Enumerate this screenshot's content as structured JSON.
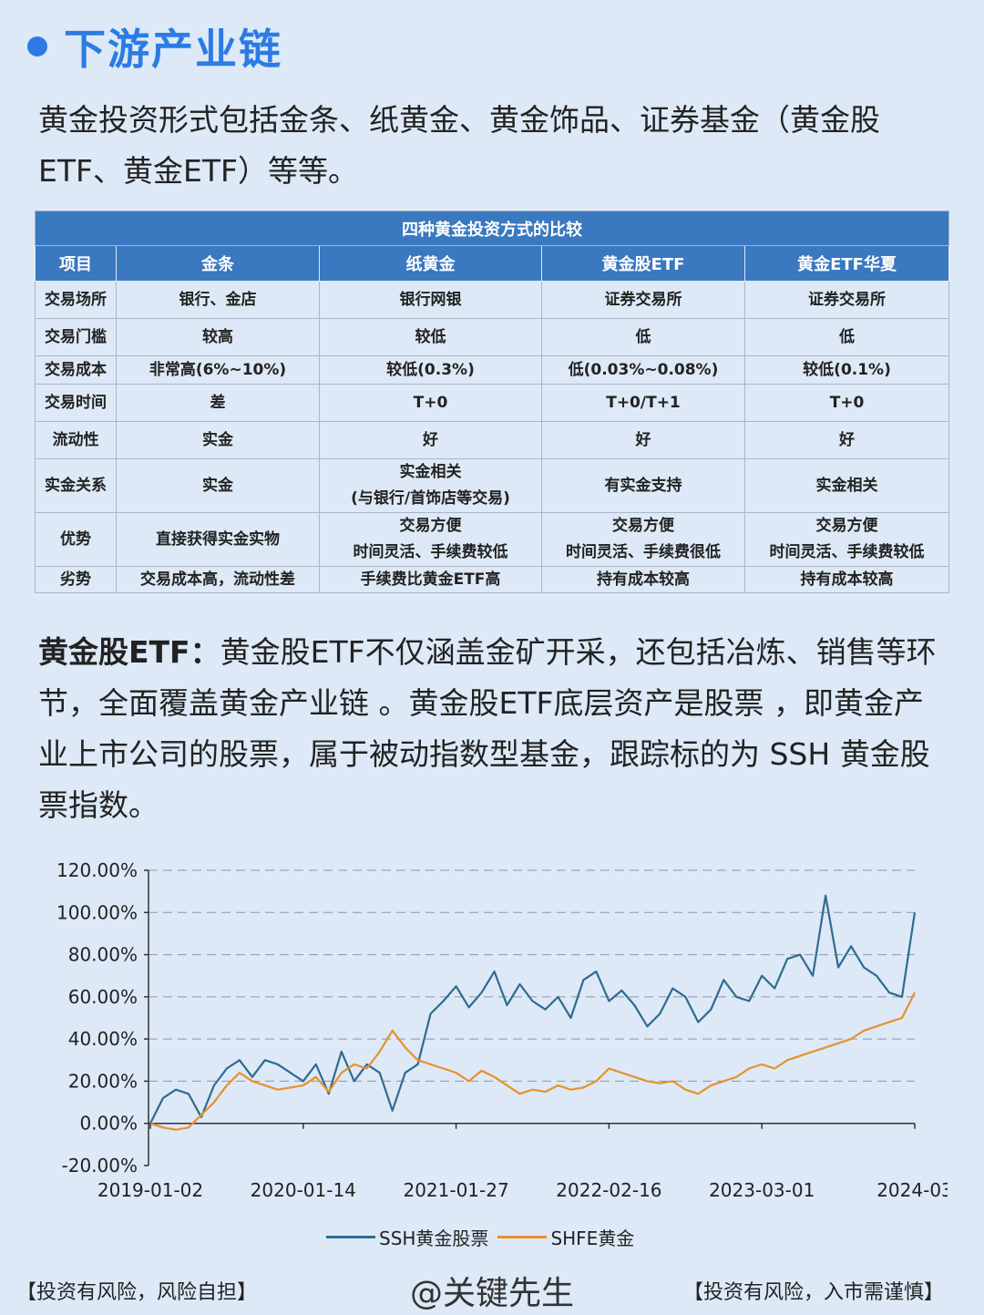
{
  "section": {
    "title": "下游产业链"
  },
  "intro": "黄金投资形式包括金条、纸黄金、黄金饰品、证券基金（黄金股ETF、黄金ETF）等等。",
  "table": {
    "caption": "四种黄金投资方式的比较",
    "headers": [
      "项目",
      "金条",
      "纸黄金",
      "黄金股ETF",
      "黄金ETF华夏"
    ],
    "rows": [
      [
        "交易场所",
        "银行、金店",
        "银行网银",
        "证券交易所",
        "证券交易所"
      ],
      [
        "交易门槛",
        "较高",
        "较低",
        "低",
        "低"
      ],
      [
        "交易成本",
        "非常高(6%~10%)",
        "较低(0.3%)",
        "低(0.03%~0.08%)",
        "较低(0.1%)"
      ],
      [
        "交易时间",
        "差",
        "T+0",
        "T+0/T+1",
        "T+0"
      ],
      [
        "流动性",
        "实金",
        "好",
        "好",
        "好"
      ],
      [
        "实金关系",
        "实金",
        "实金相关\n(与银行/首饰店等交易)",
        "有实金支持",
        "实金相关"
      ],
      [
        "优势",
        "直接获得实金实物",
        "交易方便\n时间灵活、手续费较低",
        "交易方便\n时间灵活、手续费很低",
        "交易方便\n时间灵活、手续费较低"
      ],
      [
        "劣势",
        "交易成本高，流动性差",
        "手续费比黄金ETF高",
        "持有成本较高",
        "持有成本较高"
      ]
    ]
  },
  "paragraph": {
    "lead": "黄金股ETF：",
    "body": "黄金股ETF不仅涵盖金矿开采，还包括冶炼、销售等环节，全面覆盖黄金产业链 。黄金股ETF底层资产是股票 ，即黄金产业上市公司的股票，属于被动指数型基金，跟踪标的为 SSH 黄金股票指数。"
  },
  "chart_data": {
    "type": "line",
    "x_tick_labels": [
      "2019-01-02",
      "2020-01-14",
      "2021-01-27",
      "2022-02-16",
      "2023-03-01",
      "2024-03"
    ],
    "y_tick_labels": [
      "120.00%",
      "100.00%",
      "80.00%",
      "60.00%",
      "40.00%",
      "20.00%",
      "0.00%",
      "-20.00%"
    ],
    "ylim": [
      -20,
      120
    ],
    "grid": "horizontal dashed",
    "legend_position": "bottom",
    "series": [
      {
        "name": "SSH黄金股票",
        "color": "#2f6b8f",
        "x": [
          "2019-01-02",
          "2019-02",
          "2019-03",
          "2019-04",
          "2019-05",
          "2019-06",
          "2019-07",
          "2019-08",
          "2019-09",
          "2019-10",
          "2019-11",
          "2019-12",
          "2020-01-14",
          "2020-02",
          "2020-03",
          "2020-04",
          "2020-05",
          "2020-06",
          "2020-07",
          "2020-08",
          "2020-09",
          "2020-10",
          "2020-11",
          "2020-12",
          "2021-01-27",
          "2021-03",
          "2021-04",
          "2021-05",
          "2021-06",
          "2021-07",
          "2021-08",
          "2021-09",
          "2021-10",
          "2021-11",
          "2021-12",
          "2022-01",
          "2022-02-16",
          "2022-03",
          "2022-04",
          "2022-05",
          "2022-06",
          "2022-07",
          "2022-08",
          "2022-09",
          "2022-10",
          "2022-11",
          "2022-12",
          "2023-01",
          "2023-03-01",
          "2023-04",
          "2023-05",
          "2023-06",
          "2023-07",
          "2023-08",
          "2023-09",
          "2023-10",
          "2023-11",
          "2023-12",
          "2024-01",
          "2024-02",
          "2024-03"
        ],
        "y": [
          0,
          12,
          16,
          14,
          3,
          18,
          26,
          30,
          22,
          30,
          28,
          24,
          20,
          28,
          14,
          34,
          20,
          28,
          24,
          6,
          24,
          28,
          52,
          58,
          65,
          55,
          62,
          72,
          56,
          66,
          58,
          54,
          60,
          50,
          68,
          72,
          58,
          63,
          56,
          46,
          52,
          64,
          60,
          48,
          54,
          68,
          60,
          58,
          70,
          64,
          78,
          80,
          70,
          108,
          74,
          84,
          74,
          70,
          62,
          60,
          100
        ]
      },
      {
        "name": "SHFE黄金",
        "color": "#e8912b",
        "x": [
          "2019-01-02",
          "2019-02",
          "2019-03",
          "2019-04",
          "2019-05",
          "2019-06",
          "2019-07",
          "2019-08",
          "2019-09",
          "2019-10",
          "2019-11",
          "2019-12",
          "2020-01-14",
          "2020-02",
          "2020-03",
          "2020-04",
          "2020-05",
          "2020-06",
          "2020-07",
          "2020-08",
          "2020-09",
          "2020-10",
          "2020-11",
          "2020-12",
          "2021-01-27",
          "2021-03",
          "2021-04",
          "2021-05",
          "2021-06",
          "2021-07",
          "2021-08",
          "2021-09",
          "2021-10",
          "2021-11",
          "2021-12",
          "2022-01",
          "2022-02-16",
          "2022-03",
          "2022-04",
          "2022-05",
          "2022-06",
          "2022-07",
          "2022-08",
          "2022-09",
          "2022-10",
          "2022-11",
          "2022-12",
          "2023-01",
          "2023-03-01",
          "2023-04",
          "2023-05",
          "2023-06",
          "2023-07",
          "2023-08",
          "2023-09",
          "2023-10",
          "2023-11",
          "2023-12",
          "2024-01",
          "2024-02",
          "2024-03"
        ],
        "y": [
          0,
          -2,
          -3,
          -2,
          4,
          10,
          18,
          24,
          20,
          18,
          16,
          17,
          18,
          22,
          15,
          24,
          28,
          26,
          34,
          44,
          36,
          30,
          28,
          26,
          24,
          20,
          25,
          22,
          18,
          14,
          16,
          15,
          18,
          16,
          17,
          20,
          26,
          24,
          22,
          20,
          19,
          20,
          16,
          14,
          18,
          20,
          22,
          26,
          28,
          26,
          30,
          32,
          34,
          36,
          38,
          40,
          44,
          46,
          48,
          50,
          62
        ]
      }
    ]
  },
  "footer": {
    "left": "【投资有风险，风险自担】",
    "center": "@关键先生",
    "right": "【投资有风险，入市需谨慎】"
  }
}
